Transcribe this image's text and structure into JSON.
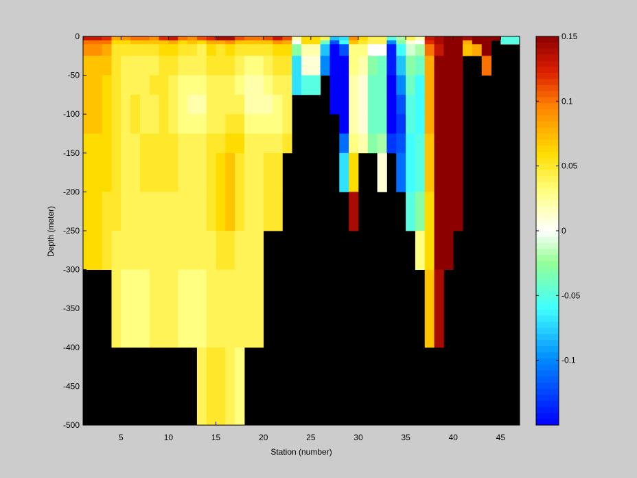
{
  "chart_data": {
    "type": "heatmap",
    "title": "",
    "xlabel": "Station (number)",
    "ylabel": "Depth (meter)",
    "xlim": [
      1,
      47
    ],
    "ylim": [
      -500,
      0
    ],
    "x_ticks": [
      5,
      10,
      15,
      20,
      25,
      30,
      35,
      40,
      45
    ],
    "y_ticks": [
      0,
      -50,
      -100,
      -150,
      -200,
      -250,
      -300,
      -350,
      -400,
      -450,
      -500
    ],
    "colorbar": {
      "range": [
        -0.15,
        0.15
      ],
      "colormap": "jet-white",
      "ticks": [
        0.15,
        0.1,
        0.05,
        0,
        -0.05,
        -0.1
      ],
      "tick_labels": [
        "0.15",
        "0.1",
        "0.05",
        "0",
        "-0.05",
        "-0.1"
      ]
    },
    "background": "#000000",
    "depth_levels": [
      0,
      -5,
      -10,
      -25,
      -50,
      -75,
      -100,
      -125,
      -150,
      -200,
      -250,
      -300,
      -400,
      -500
    ],
    "stations": [
      {
        "x": 1,
        "b": -300,
        "v": [
          0.13,
          0.1,
          0.09,
          0.07,
          0.07,
          0.07,
          0.07,
          0.06,
          0.06,
          0.06,
          0.06,
          0.06
        ]
      },
      {
        "x": 2,
        "b": -300,
        "v": [
          0.13,
          0.1,
          0.09,
          0.07,
          0.07,
          0.07,
          0.07,
          0.06,
          0.06,
          0.06,
          0.06,
          0.06
        ]
      },
      {
        "x": 3,
        "b": -300,
        "v": [
          0.12,
          0.1,
          0.08,
          0.07,
          0.06,
          0.06,
          0.06,
          0.06,
          0.06,
          0.05,
          0.05,
          0.05
        ]
      },
      {
        "x": 4,
        "b": -400,
        "v": [
          0.08,
          0.06,
          0.05,
          0.05,
          0.05,
          0.05,
          0.05,
          0.05,
          0.05,
          0.05,
          0.04,
          0.04,
          0.04
        ]
      },
      {
        "x": 5,
        "b": -400,
        "v": [
          0.09,
          0.06,
          0.05,
          0.04,
          0.04,
          0.04,
          0.04,
          0.04,
          0.04,
          0.04,
          0.04,
          0.03,
          0.03
        ]
      },
      {
        "x": 6,
        "b": -400,
        "v": [
          0.1,
          0.07,
          0.05,
          0.04,
          0.04,
          0.05,
          0.05,
          0.04,
          0.04,
          0.04,
          0.04,
          0.03,
          0.03
        ]
      },
      {
        "x": 7,
        "b": -400,
        "v": [
          0.1,
          0.07,
          0.05,
          0.04,
          0.04,
          0.04,
          0.04,
          0.05,
          0.05,
          0.04,
          0.04,
          0.03,
          0.03
        ]
      },
      {
        "x": 8,
        "b": -400,
        "v": [
          0.09,
          0.07,
          0.05,
          0.04,
          0.05,
          0.04,
          0.04,
          0.05,
          0.05,
          0.04,
          0.04,
          0.04,
          0.05
        ]
      },
      {
        "x": 9,
        "b": -400,
        "v": [
          0.12,
          0.07,
          0.06,
          0.05,
          0.05,
          0.05,
          0.05,
          0.05,
          0.05,
          0.04,
          0.04,
          0.04,
          0.05
        ]
      },
      {
        "x": 10,
        "b": -400,
        "v": [
          0.13,
          0.08,
          0.06,
          0.05,
          0.04,
          0.04,
          0.04,
          0.05,
          0.05,
          0.04,
          0.04,
          0.04,
          0.05
        ]
      },
      {
        "x": 11,
        "b": -400,
        "v": [
          0.1,
          0.06,
          0.05,
          0.04,
          0.03,
          0.03,
          0.03,
          0.04,
          0.04,
          0.04,
          0.04,
          0.03,
          0.04
        ]
      },
      {
        "x": 12,
        "b": -400,
        "v": [
          0.09,
          0.07,
          0.05,
          0.04,
          0.03,
          0.02,
          0.03,
          0.04,
          0.04,
          0.04,
          0.04,
          0.03,
          0.05
        ]
      },
      {
        "x": 13,
        "b": -500,
        "v": [
          0.11,
          0.06,
          0.04,
          0.04,
          0.03,
          0.02,
          0.03,
          0.04,
          0.04,
          0.04,
          0.04,
          0.03,
          0.04,
          0.03
        ]
      },
      {
        "x": 14,
        "b": -500,
        "v": [
          0.12,
          0.08,
          0.06,
          0.05,
          0.04,
          0.04,
          0.04,
          0.05,
          0.05,
          0.05,
          0.04,
          0.04,
          0.05,
          0.03
        ]
      },
      {
        "x": 15,
        "b": -500,
        "v": [
          0.14,
          0.08,
          0.05,
          0.05,
          0.04,
          0.04,
          0.04,
          0.05,
          0.06,
          0.06,
          0.05,
          0.04,
          0.05,
          0.02
        ]
      },
      {
        "x": 16,
        "b": -500,
        "v": [
          0.14,
          0.09,
          0.06,
          0.05,
          0.04,
          0.04,
          0.05,
          0.06,
          0.07,
          0.07,
          0.05,
          0.04,
          0.04,
          0.03
        ]
      },
      {
        "x": 17,
        "b": -500,
        "v": [
          0.11,
          0.07,
          0.05,
          0.04,
          0.03,
          0.04,
          0.05,
          0.06,
          0.05,
          0.05,
          0.04,
          0.04,
          0.03,
          0.04
        ]
      },
      {
        "x": 18,
        "b": -400,
        "v": [
          0.1,
          0.07,
          0.05,
          0.03,
          0.02,
          0.02,
          0.03,
          0.04,
          0.04,
          0.04,
          0.04,
          0.04,
          0.04
        ]
      },
      {
        "x": 19,
        "b": -400,
        "v": [
          0.1,
          0.07,
          0.05,
          0.03,
          0.02,
          0.02,
          0.03,
          0.04,
          0.04,
          0.04,
          0.04,
          0.04,
          0.04
        ]
      },
      {
        "x": 20,
        "b": -250,
        "v": [
          0.11,
          0.07,
          0.05,
          0.04,
          0.03,
          0.02,
          0.03,
          0.04,
          0.05,
          0.05,
          0.06
        ]
      },
      {
        "x": 21,
        "b": -250,
        "v": [
          0.13,
          0.09,
          0.06,
          0.05,
          0.04,
          0.03,
          0.03,
          0.04,
          0.05,
          0.05,
          0.05
        ]
      },
      {
        "x": 22,
        "b": -150,
        "v": [
          0.11,
          0.08,
          0.06,
          0.05,
          0.04,
          0.04,
          0.04,
          0.05,
          0.05
        ]
      },
      {
        "x": 23,
        "b": -75,
        "v": [
          0.02,
          0.0,
          -0.03,
          -0.07,
          -0.07
        ]
      },
      {
        "x": 24,
        "b": -75,
        "v": [
          0.06,
          0.06,
          0.02,
          0.01,
          -0.05
        ]
      },
      {
        "x": 25,
        "b": -75,
        "v": [
          0.06,
          0.06,
          0.02,
          0.01,
          -0.05
        ]
      },
      {
        "x": 26,
        "b": -50,
        "v": [
          0.04,
          -0.04,
          -0.08,
          -0.1
        ]
      },
      {
        "x": 27,
        "b": -100,
        "v": [
          -0.08,
          -0.12,
          -0.15,
          -0.15,
          -0.15,
          -0.15
        ]
      },
      {
        "x": 28,
        "b": -200,
        "v": [
          -0.07,
          -0.06,
          -0.12,
          -0.15,
          -0.15,
          -0.15,
          -0.15,
          -0.11,
          -0.07,
          -0.07
        ]
      },
      {
        "x": 29,
        "b": -250,
        "v": [
          0.09,
          0.07,
          0.03,
          0.03,
          0.02,
          0.02,
          0.02,
          0.03,
          0.06,
          0.14,
          0.15
        ]
      },
      {
        "x": 30,
        "b": -150,
        "v": [
          0.06,
          0.05,
          0.03,
          0.02,
          0.01,
          0.01,
          0.01,
          0.02,
          0.02
        ]
      },
      {
        "x": 31,
        "b": -150,
        "v": [
          0.04,
          0.04,
          0.0,
          -0.03,
          -0.04,
          -0.04,
          -0.04,
          -0.03,
          0.0
        ]
      },
      {
        "x": 32,
        "b": -200,
        "v": [
          0.04,
          0.04,
          0.0,
          -0.04,
          -0.04,
          -0.04,
          -0.04,
          -0.02,
          0.01,
          0.02
        ]
      },
      {
        "x": 33,
        "b": -150,
        "v": [
          -0.05,
          -0.1,
          -0.14,
          -0.14,
          -0.15,
          -0.15,
          -0.15,
          -0.13,
          -0.12
        ]
      },
      {
        "x": 34,
        "b": -200,
        "v": [
          -0.02,
          -0.03,
          -0.06,
          -0.08,
          -0.1,
          -0.12,
          -0.13,
          -0.12,
          -0.11,
          0.03
        ]
      },
      {
        "x": 35,
        "b": -250,
        "v": [
          0.04,
          0.01,
          -0.01,
          -0.03,
          -0.04,
          -0.05,
          -0.05,
          -0.06,
          -0.06,
          -0.05,
          -0.04
        ]
      },
      {
        "x": 36,
        "b": -300,
        "v": [
          0.02,
          0.0,
          -0.02,
          -0.04,
          -0.06,
          -0.06,
          -0.06,
          -0.05,
          -0.05,
          -0.03,
          0.03,
          0.06
        ]
      },
      {
        "x": 37,
        "b": -400,
        "v": [
          0.13,
          0.12,
          0.1,
          0.08,
          0.08,
          0.08,
          0.08,
          0.07,
          0.07,
          0.06,
          0.06,
          0.07,
          0.1
        ]
      },
      {
        "x": 38,
        "b": -400,
        "v": [
          0.14,
          0.14,
          0.13,
          0.15,
          0.15,
          0.15,
          0.15,
          0.15,
          0.15,
          0.15,
          0.15,
          0.14,
          0.15
        ]
      },
      {
        "x": 39,
        "b": -300,
        "v": [
          0.15,
          0.15,
          0.15,
          0.15,
          0.15,
          0.15,
          0.15,
          0.15,
          0.15,
          0.15,
          0.15,
          0.15
        ]
      },
      {
        "x": 40,
        "b": -250,
        "v": [
          0.15,
          0.15,
          0.15,
          0.15,
          0.15,
          0.15,
          0.15,
          0.15,
          0.15,
          0.15,
          0.15
        ]
      },
      {
        "x": 41,
        "b": -25,
        "v": [
          0.14,
          0.08,
          0.07
        ]
      },
      {
        "x": 42,
        "b": -25,
        "v": [
          0.15,
          0.15,
          0.08
        ]
      },
      {
        "x": 43,
        "b": -50,
        "v": [
          0.15,
          0.15,
          0.15,
          0.1
        ]
      },
      {
        "x": 44,
        "b": -5,
        "v": [
          0.15
        ]
      },
      {
        "x": 45,
        "b": -10,
        "v": [
          -0.05,
          -0.05
        ]
      },
      {
        "x": 46,
        "b": -10,
        "v": [
          -0.05,
          -0.05
        ]
      }
    ]
  }
}
